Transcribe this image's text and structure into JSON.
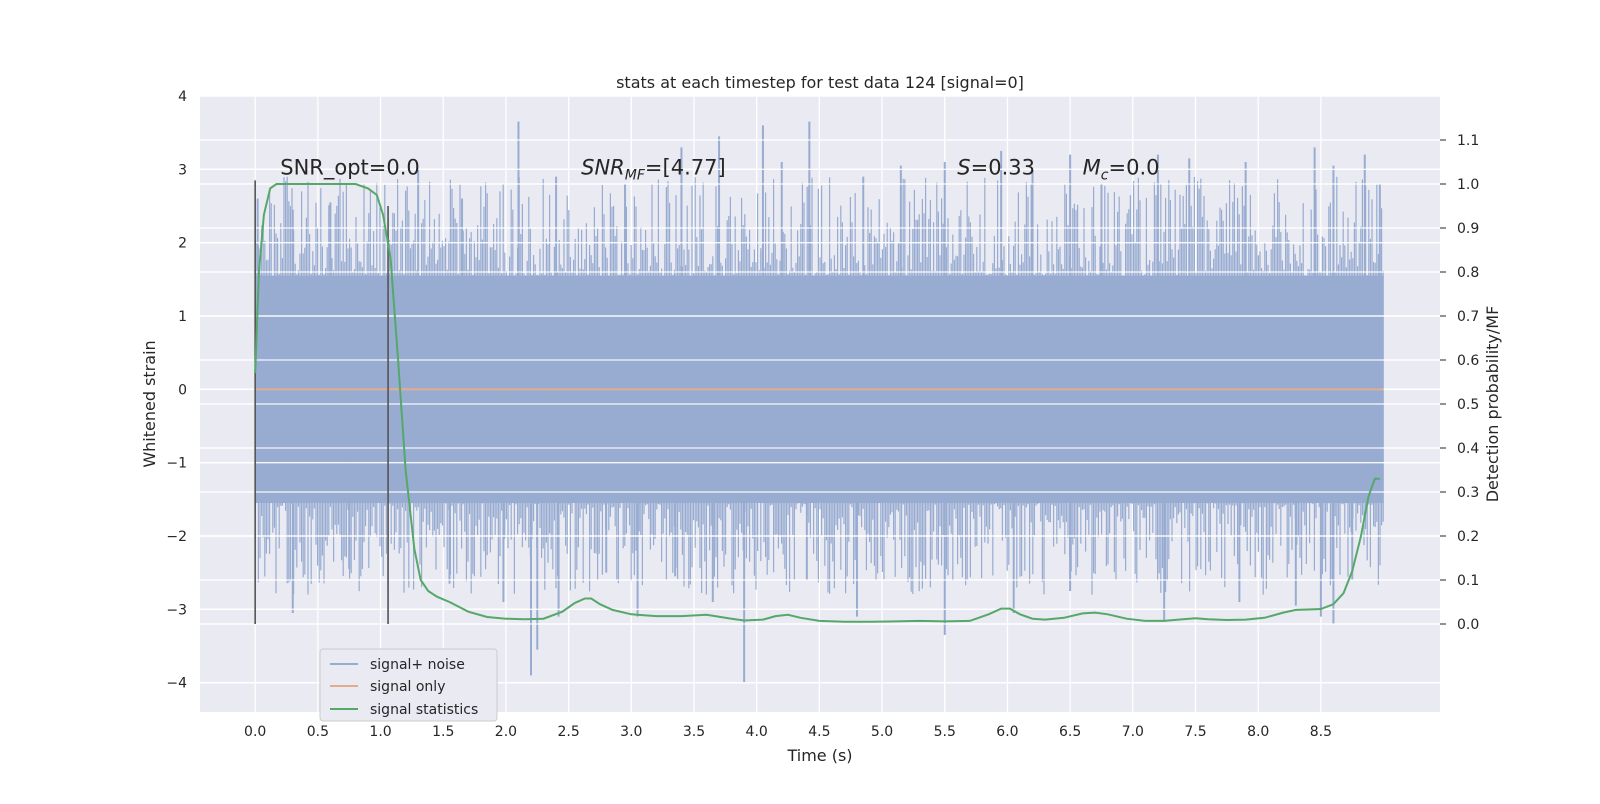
{
  "chart_data": {
    "type": "line",
    "title": "stats at each timestep for test data 124 [signal=0]",
    "xlabel": "Time (s)",
    "ylabel": "Whitened strain",
    "y2label": "Detection probability/MF",
    "xlim": [
      -0.44,
      9.45
    ],
    "ylim": [
      -4.4,
      4.0
    ],
    "y2lim": [
      -0.2,
      1.2
    ],
    "grid": true,
    "legend_position": "lower-left",
    "x_ticks": [
      0.0,
      0.5,
      1.0,
      1.5,
      2.0,
      2.5,
      3.0,
      3.5,
      4.0,
      4.5,
      5.0,
      5.5,
      6.0,
      6.5,
      7.0,
      7.5,
      8.0,
      8.5
    ],
    "x_tick_labels": [
      "0.0",
      "0.5",
      "1.0",
      "1.5",
      "2.0",
      "2.5",
      "3.0",
      "3.5",
      "4.0",
      "4.5",
      "5.0",
      "5.5",
      "6.0",
      "6.5",
      "7.0",
      "7.5",
      "8.0",
      "8.5"
    ],
    "y_ticks": [
      -4,
      -3,
      -2,
      -1,
      0,
      1,
      2,
      3,
      4
    ],
    "y_tick_labels": [
      "−4",
      "−3",
      "−2",
      "−1",
      "0",
      "1",
      "2",
      "3",
      "4"
    ],
    "y2_ticks": [
      0.0,
      0.1,
      0.2,
      0.3,
      0.4,
      0.5,
      0.6,
      0.7,
      0.8,
      0.9,
      1.0,
      1.1
    ],
    "y2_tick_labels": [
      "0.0",
      "0.1",
      "0.2",
      "0.3",
      "0.4",
      "0.5",
      "0.6",
      "0.7",
      "0.8",
      "0.9",
      "1.0",
      "1.1"
    ],
    "series": [
      {
        "name": "signal+ noise",
        "axis": "left",
        "color": "#98acd1",
        "render": "noise-band",
        "x_range": [
          0.0,
          9.0
        ],
        "core_range": [
          -1.55,
          1.55
        ],
        "peaks": [
          {
            "x": 0.02,
            "y": 2.6
          },
          {
            "x": 0.3,
            "y": 2.45
          },
          {
            "x": 0.6,
            "y": 2.55
          },
          {
            "x": 1.3,
            "y": 3.0
          },
          {
            "x": 1.65,
            "y": 2.6
          },
          {
            "x": 2.1,
            "y": 3.65
          },
          {
            "x": 2.4,
            "y": 2.9
          },
          {
            "x": 2.95,
            "y": 2.8
          },
          {
            "x": 3.4,
            "y": 3.3
          },
          {
            "x": 3.7,
            "y": 3.45
          },
          {
            "x": 4.05,
            "y": 3.6
          },
          {
            "x": 4.2,
            "y": 3.1
          },
          {
            "x": 4.42,
            "y": 3.65
          },
          {
            "x": 4.85,
            "y": 2.9
          },
          {
            "x": 5.15,
            "y": 3.05
          },
          {
            "x": 5.5,
            "y": 3.1
          },
          {
            "x": 5.95,
            "y": 3.25
          },
          {
            "x": 6.2,
            "y": 3.0
          },
          {
            "x": 6.5,
            "y": 3.2
          },
          {
            "x": 6.75,
            "y": 2.8
          },
          {
            "x": 7.2,
            "y": 3.2
          },
          {
            "x": 7.45,
            "y": 3.15
          },
          {
            "x": 7.9,
            "y": 3.1
          },
          {
            "x": 8.45,
            "y": 3.3
          },
          {
            "x": 8.6,
            "y": 3.05
          },
          {
            "x": 8.85,
            "y": 3.2
          },
          {
            "x": 8.97,
            "y": 2.8
          }
        ],
        "troughs": [
          {
            "x": 0.3,
            "y": -3.05
          },
          {
            "x": 0.75,
            "y": -2.45
          },
          {
            "x": 1.55,
            "y": -2.65
          },
          {
            "x": 1.98,
            "y": -2.9
          },
          {
            "x": 2.2,
            "y": -3.9
          },
          {
            "x": 2.25,
            "y": -3.55
          },
          {
            "x": 2.42,
            "y": -3.1
          },
          {
            "x": 2.8,
            "y": -2.5
          },
          {
            "x": 3.05,
            "y": -3.1
          },
          {
            "x": 3.35,
            "y": -2.55
          },
          {
            "x": 3.65,
            "y": -2.9
          },
          {
            "x": 3.9,
            "y": -4.0
          },
          {
            "x": 4.4,
            "y": -2.6
          },
          {
            "x": 4.8,
            "y": -3.1
          },
          {
            "x": 5.5,
            "y": -3.35
          },
          {
            "x": 6.05,
            "y": -3.05
          },
          {
            "x": 6.5,
            "y": -2.75
          },
          {
            "x": 7.25,
            "y": -3.15
          },
          {
            "x": 7.85,
            "y": -2.9
          },
          {
            "x": 8.3,
            "y": -2.95
          },
          {
            "x": 8.5,
            "y": -3.1
          },
          {
            "x": 8.6,
            "y": -3.2
          },
          {
            "x": 8.75,
            "y": -2.6
          }
        ]
      },
      {
        "name": "signal only",
        "axis": "left",
        "color": "#e5ab8e",
        "x": [
          0.0,
          9.0
        ],
        "y": [
          0.0,
          0.0
        ]
      },
      {
        "name": "signal statistics",
        "axis": "right",
        "color": "#55a868",
        "x": [
          0.0,
          0.03,
          0.07,
          0.12,
          0.17,
          0.25,
          0.4,
          0.6,
          0.8,
          0.9,
          0.97,
          1.02,
          1.08,
          1.14,
          1.2,
          1.27,
          1.32,
          1.38,
          1.45,
          1.55,
          1.7,
          1.85,
          2.0,
          2.15,
          2.3,
          2.45,
          2.55,
          2.63,
          2.68,
          2.75,
          2.85,
          3.0,
          3.2,
          3.4,
          3.6,
          3.8,
          3.9,
          4.05,
          4.15,
          4.25,
          4.35,
          4.5,
          4.7,
          4.9,
          5.1,
          5.3,
          5.5,
          5.7,
          5.85,
          5.95,
          6.02,
          6.1,
          6.2,
          6.3,
          6.45,
          6.6,
          6.7,
          6.8,
          6.95,
          7.1,
          7.25,
          7.4,
          7.5,
          7.6,
          7.75,
          7.9,
          8.05,
          8.2,
          8.3,
          8.4,
          8.5,
          8.6,
          8.68,
          8.75,
          8.82,
          8.88,
          8.93,
          8.97
        ],
        "y": [
          0.57,
          0.8,
          0.93,
          0.99,
          1.0,
          1.0,
          1.0,
          1.0,
          1.0,
          0.99,
          0.975,
          0.93,
          0.83,
          0.6,
          0.35,
          0.17,
          0.1,
          0.075,
          0.062,
          0.05,
          0.028,
          0.016,
          0.012,
          0.011,
          0.012,
          0.028,
          0.048,
          0.058,
          0.058,
          0.045,
          0.032,
          0.022,
          0.018,
          0.018,
          0.021,
          0.012,
          0.008,
          0.01,
          0.018,
          0.021,
          0.014,
          0.007,
          0.005,
          0.005,
          0.006,
          0.007,
          0.006,
          0.007,
          0.022,
          0.035,
          0.035,
          0.022,
          0.012,
          0.01,
          0.014,
          0.024,
          0.026,
          0.022,
          0.012,
          0.007,
          0.007,
          0.011,
          0.013,
          0.011,
          0.009,
          0.01,
          0.014,
          0.026,
          0.032,
          0.033,
          0.034,
          0.045,
          0.07,
          0.12,
          0.2,
          0.29,
          0.33,
          0.33
        ]
      }
    ],
    "vertical_lines": [
      {
        "x": 0.0,
        "y_range": [
          -3.2,
          2.85
        ],
        "color": "#555555"
      },
      {
        "x": 1.06,
        "y_range": [
          -3.2,
          2.5
        ],
        "color": "#555555"
      }
    ],
    "annotations": [
      {
        "text": "SNR_opt=0.0",
        "x": 0.2,
        "y": 2.93
      },
      {
        "text_parts": [
          "SNR",
          "MF",
          "=[4.77]"
        ],
        "style": "subscript",
        "x": 2.6,
        "y": 2.93
      },
      {
        "text_parts": [
          "S",
          "",
          "=0.33"
        ],
        "style": "italic",
        "x": 5.6,
        "y": 2.93
      },
      {
        "text_parts": [
          "M",
          "c",
          "=0.0"
        ],
        "style": "subscript",
        "x": 6.6,
        "y": 2.93
      }
    ],
    "legend": [
      {
        "label": "signal+ noise",
        "color": "#98acd1"
      },
      {
        "label": "signal only",
        "color": "#e5ab8e"
      },
      {
        "label": "signal statistics",
        "color": "#55a868"
      }
    ]
  }
}
